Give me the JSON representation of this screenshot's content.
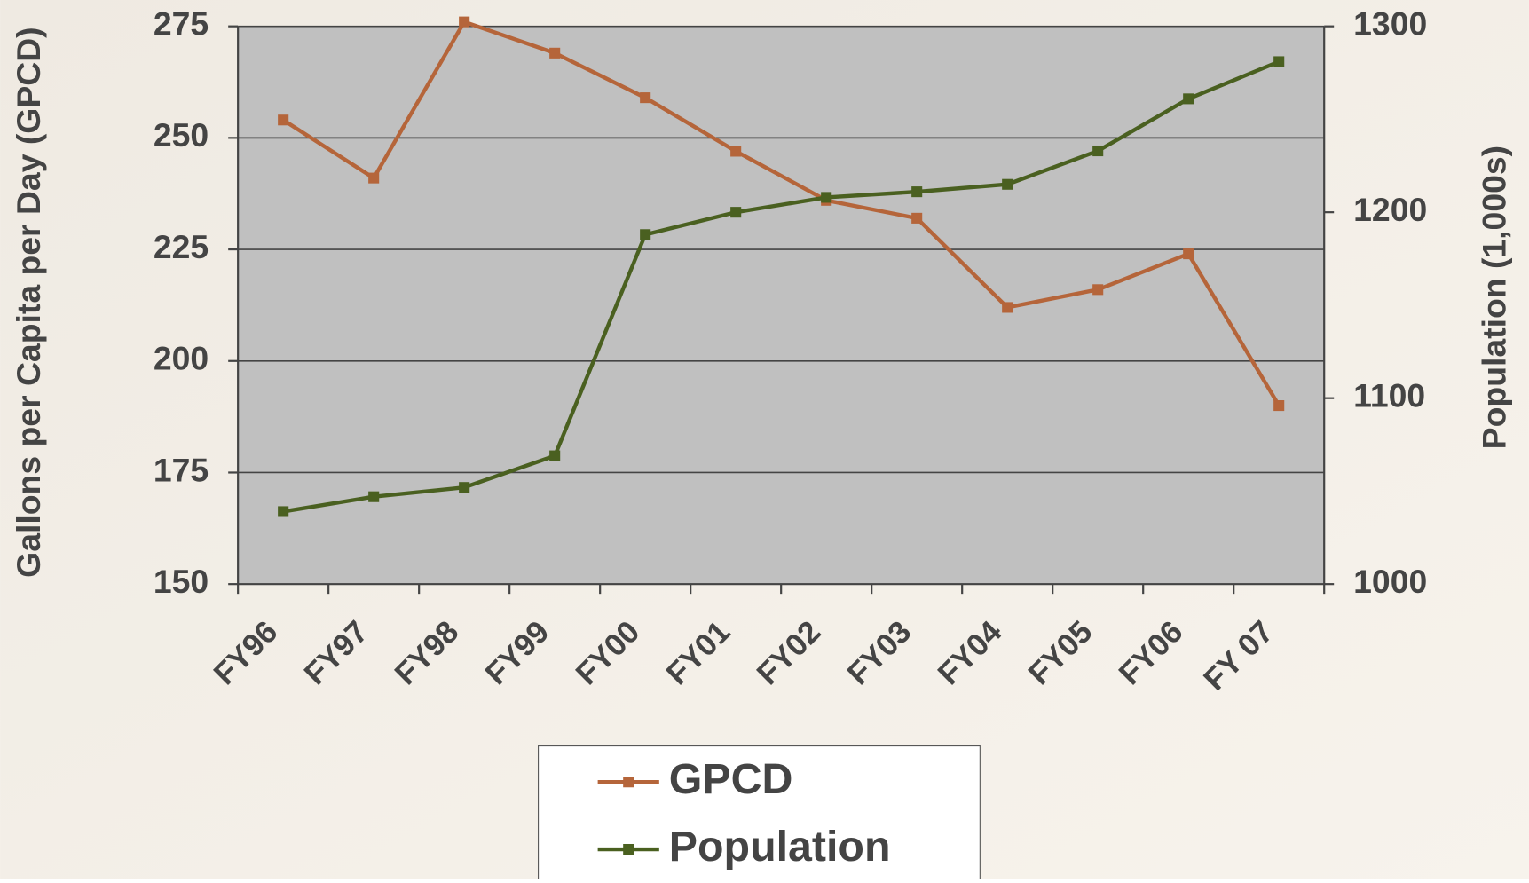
{
  "chart_data": {
    "type": "line",
    "y_label": "Gallons per Capita per Day (GPCD)",
    "y2_label": "Population (1,000s)",
    "categories": [
      "FY96",
      "FY97",
      "FY98",
      "FY99",
      "FY00",
      "FY01",
      "FY02",
      "FY03",
      "FY04",
      "FY05",
      "FY06",
      "FY 07"
    ],
    "series": [
      {
        "name": "GPCD",
        "color": "#b5653a",
        "values": [
          254,
          241,
          276,
          269,
          259,
          247,
          236,
          232,
          212,
          216,
          224,
          190
        ]
      },
      {
        "name": "Population",
        "color": "#4a6020",
        "axis": "y2",
        "values": [
          1039,
          1047,
          1052,
          1069,
          1188,
          1200,
          1208,
          1211,
          1215,
          1233,
          1261,
          1281
        ]
      }
    ],
    "ylim": [
      150,
      275
    ],
    "yticks": [
      150,
      175,
      200,
      225,
      250,
      275
    ],
    "y2lim": [
      1000,
      1300
    ],
    "y2ticks": [
      1000,
      1100,
      1200,
      1300
    ],
    "grid": true
  }
}
